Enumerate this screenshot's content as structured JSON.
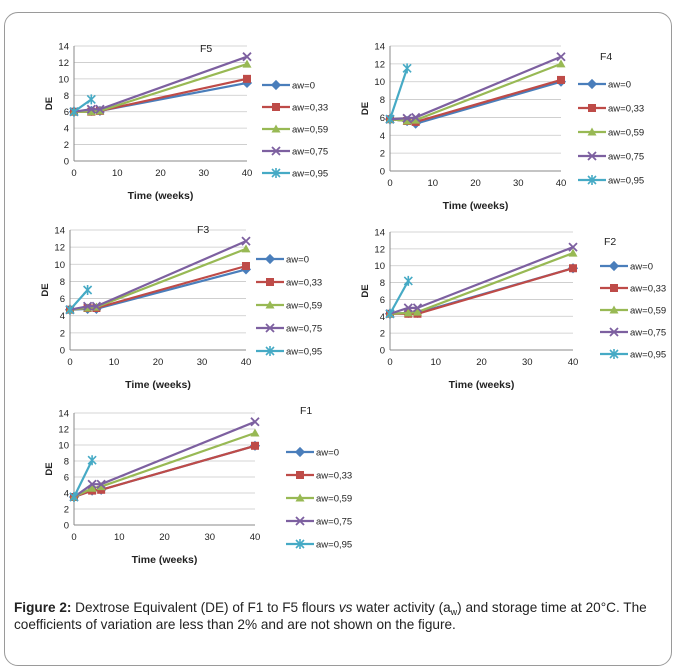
{
  "colors": {
    "aw=0": "#4a7ebb",
    "aw=0,33": "#be4b48",
    "aw=0,59": "#98b954",
    "aw=0,75": "#7d60a0",
    "aw=0,95": "#46aac5"
  },
  "caption": {
    "label": "Figure 2:",
    "part1": " Dextrose Equivalent (DE) of F1 to F5 flours ",
    "vs": "vs",
    "part2": " water activity (a",
    "sub": "w",
    "part3": ") and storage time at 20°C. The coefficients of variation are less than 2% and are not shown on the figure."
  },
  "chart_data": [
    {
      "type": "line",
      "title": "F5",
      "xlabel": "Time (weeks)",
      "ylabel": "DE",
      "xlim": [
        0,
        40
      ],
      "ylim": [
        0,
        14
      ],
      "xticks": [
        0,
        10,
        20,
        30,
        40
      ],
      "yticks": [
        0,
        2,
        4,
        6,
        8,
        10,
        12,
        14
      ],
      "grid": "horizontal",
      "legend": "right",
      "series": [
        {
          "name": "aw=0",
          "x": [
            0,
            4,
            6,
            40
          ],
          "y": [
            6,
            6.1,
            6.1,
            9.5
          ]
        },
        {
          "name": "aw=0,33",
          "x": [
            0,
            4,
            6,
            40
          ],
          "y": [
            6,
            6,
            6.1,
            10
          ]
        },
        {
          "name": "aw=0,59",
          "x": [
            0,
            4,
            6,
            40
          ],
          "y": [
            6,
            6,
            6.1,
            11.8
          ]
        },
        {
          "name": "aw=0,75",
          "x": [
            0,
            4,
            6,
            40
          ],
          "y": [
            6,
            6.3,
            6.3,
            12.7
          ]
        },
        {
          "name": "aw=0,95",
          "x": [
            0,
            4
          ],
          "y": [
            6,
            7.5
          ]
        }
      ]
    },
    {
      "type": "line",
      "title": "F4",
      "xlabel": "Time (weeks)",
      "ylabel": "DE",
      "xlim": [
        0,
        40
      ],
      "ylim": [
        0,
        14
      ],
      "xticks": [
        0,
        10,
        20,
        30,
        40
      ],
      "yticks": [
        0,
        2,
        4,
        6,
        8,
        10,
        12,
        14
      ],
      "grid": "horizontal",
      "legend": "right",
      "series": [
        {
          "name": "aw=0",
          "x": [
            0,
            4,
            6,
            40
          ],
          "y": [
            5.8,
            5.6,
            5.3,
            10
          ]
        },
        {
          "name": "aw=0,33",
          "x": [
            0,
            4,
            6,
            40
          ],
          "y": [
            5.8,
            5.6,
            5.5,
            10.2
          ]
        },
        {
          "name": "aw=0,59",
          "x": [
            0,
            4,
            6,
            40
          ],
          "y": [
            5.8,
            5.6,
            5.7,
            12
          ]
        },
        {
          "name": "aw=0,75",
          "x": [
            0,
            4,
            6,
            40
          ],
          "y": [
            5.8,
            5.9,
            6,
            12.8
          ]
        },
        {
          "name": "aw=0,95",
          "x": [
            0,
            4
          ],
          "y": [
            5.8,
            11.5
          ]
        }
      ]
    },
    {
      "type": "line",
      "title": "F3",
      "xlabel": "Time (weeks)",
      "ylabel": "DE",
      "xlim": [
        0,
        40
      ],
      "ylim": [
        0,
        14
      ],
      "xticks": [
        0,
        10,
        20,
        30,
        40
      ],
      "yticks": [
        0,
        2,
        4,
        6,
        8,
        10,
        12,
        14
      ],
      "grid": "horizontal",
      "legend": "right",
      "series": [
        {
          "name": "aw=0",
          "x": [
            0,
            4,
            6,
            40
          ],
          "y": [
            4.7,
            4.8,
            4.8,
            9.4
          ]
        },
        {
          "name": "aw=0,33",
          "x": [
            0,
            4,
            6,
            40
          ],
          "y": [
            4.7,
            4.9,
            4.9,
            9.8
          ]
        },
        {
          "name": "aw=0,59",
          "x": [
            0,
            4,
            6,
            40
          ],
          "y": [
            4.7,
            4.9,
            5,
            11.8
          ]
        },
        {
          "name": "aw=0,75",
          "x": [
            0,
            4,
            6,
            40
          ],
          "y": [
            4.7,
            5.1,
            5.1,
            12.7
          ]
        },
        {
          "name": "aw=0,95",
          "x": [
            0,
            4
          ],
          "y": [
            4.7,
            7
          ]
        }
      ]
    },
    {
      "type": "line",
      "title": "F2",
      "xlabel": "Time (weeks)",
      "ylabel": "DE",
      "xlim": [
        0,
        40
      ],
      "ylim": [
        0,
        14
      ],
      "xticks": [
        0,
        10,
        20,
        30,
        40
      ],
      "yticks": [
        0,
        2,
        4,
        6,
        8,
        10,
        12,
        14
      ],
      "grid": "horizontal",
      "legend": "right",
      "series": [
        {
          "name": "aw=0",
          "x": [
            0,
            4,
            6,
            40
          ],
          "y": [
            4.3,
            4.4,
            4.4,
            9.7
          ]
        },
        {
          "name": "aw=0,33",
          "x": [
            0,
            4,
            6,
            40
          ],
          "y": [
            4.3,
            4.3,
            4.3,
            9.7
          ]
        },
        {
          "name": "aw=0,59",
          "x": [
            0,
            4,
            6,
            40
          ],
          "y": [
            4.3,
            4.4,
            4.5,
            11.5
          ]
        },
        {
          "name": "aw=0,75",
          "x": [
            0,
            4,
            6,
            40
          ],
          "y": [
            4.3,
            5,
            5,
            12.2
          ]
        },
        {
          "name": "aw=0,95",
          "x": [
            0,
            4
          ],
          "y": [
            4.3,
            8.2
          ]
        }
      ]
    },
    {
      "type": "line",
      "title": "F1",
      "xlabel": "Time (weeks)",
      "ylabel": "DE",
      "xlim": [
        0,
        40
      ],
      "ylim": [
        0,
        14
      ],
      "xticks": [
        0,
        10,
        20,
        30,
        40
      ],
      "yticks": [
        0,
        2,
        4,
        6,
        8,
        10,
        12,
        14
      ],
      "grid": "horizontal",
      "legend": "right",
      "series": [
        {
          "name": "aw=0",
          "x": [
            0,
            4,
            6,
            40
          ],
          "y": [
            3.5,
            4.3,
            4.4,
            9.9
          ]
        },
        {
          "name": "aw=0,33",
          "x": [
            0,
            4,
            6,
            40
          ],
          "y": [
            3.5,
            4.3,
            4.4,
            9.9
          ]
        },
        {
          "name": "aw=0,59",
          "x": [
            0,
            4,
            6,
            40
          ],
          "y": [
            3.5,
            4.6,
            4.8,
            11.5
          ]
        },
        {
          "name": "aw=0,75",
          "x": [
            0,
            4,
            6,
            40
          ],
          "y": [
            3.5,
            5.1,
            5.1,
            12.9
          ]
        },
        {
          "name": "aw=0,95",
          "x": [
            0,
            4
          ],
          "y": [
            3.5,
            8.1
          ]
        }
      ]
    }
  ]
}
